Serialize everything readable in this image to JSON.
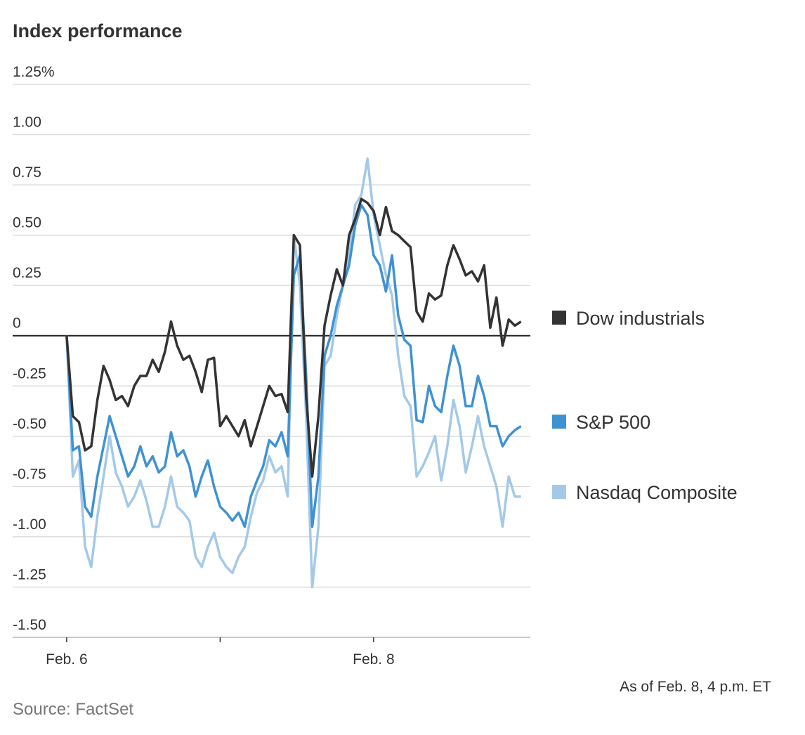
{
  "chart_data": {
    "type": "line",
    "title": "Index performance",
    "note": "As of Feb. 8, 4 p.m. ET",
    "source": "Source: FactSet",
    "legend": "right",
    "grid": true,
    "xlim": [
      -0.352,
      3.021
    ],
    "xticks": [
      {
        "value": 0,
        "label": "Feb. 6"
      },
      {
        "value": 1,
        "label": null
      },
      {
        "value": 2,
        "label": "Feb. 8"
      }
    ],
    "ylim": [
      -1.5,
      1.25
    ],
    "yticks": [
      {
        "value": 1.25,
        "label": "1.25%"
      },
      {
        "value": 1,
        "label": "1.00"
      },
      0.75,
      {
        "value": 0.5,
        "label": "0.50"
      },
      0.25,
      0,
      -0.25,
      {
        "value": -0.5,
        "label": "-0.50"
      },
      -0.75,
      {
        "value": -1,
        "label": "-1.00"
      },
      -1.25,
      {
        "value": -1.5,
        "label": "-1.50"
      }
    ],
    "x": [
      0,
      0.04,
      0.08,
      0.12,
      0.16,
      0.2,
      0.24,
      0.28,
      0.32,
      0.36,
      0.4,
      0.44,
      0.48,
      0.52,
      0.56,
      0.6,
      0.64,
      0.68,
      0.72,
      0.76,
      0.8,
      0.84,
      0.88,
      0.92,
      0.96,
      1,
      1.04,
      1.08,
      1.12,
      1.16,
      1.2,
      1.24,
      1.28,
      1.32,
      1.36,
      1.4,
      1.44,
      1.48,
      1.52,
      1.56,
      1.6,
      1.64,
      1.68,
      1.72,
      1.76,
      1.8,
      1.84,
      1.88,
      1.92,
      1.96,
      2,
      2.04,
      2.08,
      2.12,
      2.16,
      2.2,
      2.24,
      2.28,
      2.32,
      2.36,
      2.4,
      2.44,
      2.48,
      2.52,
      2.56,
      2.6,
      2.64,
      2.68,
      2.72,
      2.76,
      2.8,
      2.84,
      2.88,
      2.92,
      2.96
    ],
    "series": [
      {
        "name": "Dow industrials",
        "color": "#333333",
        "values": [
          0,
          -0.4,
          -0.43,
          -0.57,
          -0.55,
          -0.32,
          -0.15,
          -0.22,
          -0.32,
          -0.3,
          -0.35,
          -0.25,
          -0.2,
          -0.2,
          -0.12,
          -0.18,
          -0.08,
          0.07,
          -0.05,
          -0.12,
          -0.1,
          -0.18,
          -0.28,
          -0.12,
          -0.11,
          -0.45,
          -0.4,
          -0.45,
          -0.5,
          -0.42,
          -0.55,
          -0.45,
          -0.35,
          -0.25,
          -0.3,
          -0.29,
          -0.38,
          0.5,
          0.45,
          -0.3,
          -0.7,
          -0.4,
          0.05,
          0.2,
          0.33,
          0.25,
          0.5,
          0.58,
          0.68,
          0.66,
          0.62,
          0.5,
          0.64,
          0.52,
          0.5,
          0.47,
          0.44,
          0.12,
          0.07,
          0.21,
          0.18,
          0.2,
          0.35,
          0.45,
          0.38,
          0.3,
          0.32,
          0.27,
          0.35,
          0.04,
          0.19,
          -0.05,
          0.08,
          0.05,
          0.07
        ]
      },
      {
        "name": "S&P 500",
        "color": "#3f92d2",
        "values": [
          0,
          -0.57,
          -0.55,
          -0.85,
          -0.9,
          -0.7,
          -0.55,
          -0.4,
          -0.5,
          -0.6,
          -0.7,
          -0.65,
          -0.55,
          -0.65,
          -0.6,
          -0.68,
          -0.65,
          -0.48,
          -0.6,
          -0.57,
          -0.65,
          -0.8,
          -0.7,
          -0.62,
          -0.75,
          -0.85,
          -0.88,
          -0.92,
          -0.88,
          -0.95,
          -0.8,
          -0.72,
          -0.65,
          -0.52,
          -0.55,
          -0.48,
          -0.6,
          0.3,
          0.4,
          -0.2,
          -0.95,
          -0.7,
          -0.1,
          0.0,
          0.15,
          0.25,
          0.35,
          0.55,
          0.65,
          0.6,
          0.4,
          0.35,
          0.22,
          0.4,
          0.1,
          -0.02,
          -0.05,
          -0.42,
          -0.43,
          -0.25,
          -0.35,
          -0.38,
          -0.2,
          -0.05,
          -0.15,
          -0.35,
          -0.35,
          -0.2,
          -0.3,
          -0.45,
          -0.45,
          -0.55,
          -0.5,
          -0.47,
          -0.45
        ]
      },
      {
        "name": "Nasdaq Composite",
        "color": "#a4c9e8",
        "values": [
          0,
          -0.7,
          -0.62,
          -1.05,
          -1.15,
          -0.9,
          -0.7,
          -0.5,
          -0.68,
          -0.75,
          -0.85,
          -0.8,
          -0.72,
          -0.82,
          -0.95,
          -0.95,
          -0.85,
          -0.7,
          -0.85,
          -0.88,
          -0.92,
          -1.1,
          -1.15,
          -1.05,
          -0.98,
          -1.1,
          -1.15,
          -1.18,
          -1.1,
          -1.05,
          -0.9,
          -0.78,
          -0.72,
          -0.6,
          -0.68,
          -0.65,
          -0.8,
          0.5,
          0.25,
          -0.4,
          -1.25,
          -0.95,
          -0.15,
          -0.1,
          0.1,
          0.25,
          0.4,
          0.65,
          0.7,
          0.88,
          0.6,
          0.45,
          0.3,
          0.2,
          -0.1,
          -0.3,
          -0.35,
          -0.7,
          -0.65,
          -0.58,
          -0.5,
          -0.72,
          -0.55,
          -0.32,
          -0.45,
          -0.68,
          -0.55,
          -0.4,
          -0.55,
          -0.65,
          -0.75,
          -0.95,
          -0.7,
          -0.8,
          -0.8
        ]
      }
    ]
  }
}
